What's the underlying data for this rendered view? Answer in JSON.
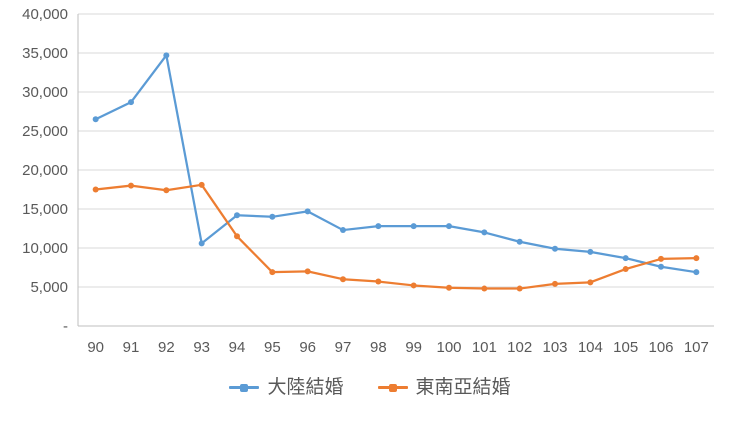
{
  "colors": {
    "series1": "#5B9BD5",
    "series2": "#ED7D31",
    "gridline": "#D9D9D9",
    "axis_line": "#BFBFBF",
    "tick_text": "#595959",
    "legend_text": "#595959",
    "background": "#FFFFFF"
  },
  "chart_data": {
    "type": "line",
    "title": "",
    "xlabel": "",
    "ylabel": "",
    "x": [
      "90",
      "91",
      "92",
      "93",
      "94",
      "95",
      "96",
      "97",
      "98",
      "99",
      "100",
      "101",
      "102",
      "103",
      "104",
      "105",
      "106",
      "107"
    ],
    "series": [
      {
        "name": "大陸結婚",
        "color": "#5B9BD5",
        "values": [
          26500,
          28700,
          34700,
          10600,
          14200,
          14000,
          14700,
          12300,
          12800,
          12800,
          12800,
          12000,
          10800,
          9900,
          9500,
          8700,
          7600,
          6900
        ]
      },
      {
        "name": "東南亞結婚",
        "color": "#ED7D31",
        "values": [
          17500,
          18000,
          17400,
          18100,
          11500,
          6900,
          7000,
          6000,
          5700,
          5200,
          4900,
          4800,
          4800,
          5400,
          5600,
          7300,
          8600,
          8700
        ]
      }
    ],
    "ylim": [
      0,
      40000
    ],
    "ytick_interval": 5000,
    "ytick_labels": [
      "-",
      "5,000",
      "10,000",
      "15,000",
      "20,000",
      "25,000",
      "30,000",
      "35,000",
      "40,000"
    ],
    "grid": "horizontal",
    "legend_position": "bottom"
  }
}
